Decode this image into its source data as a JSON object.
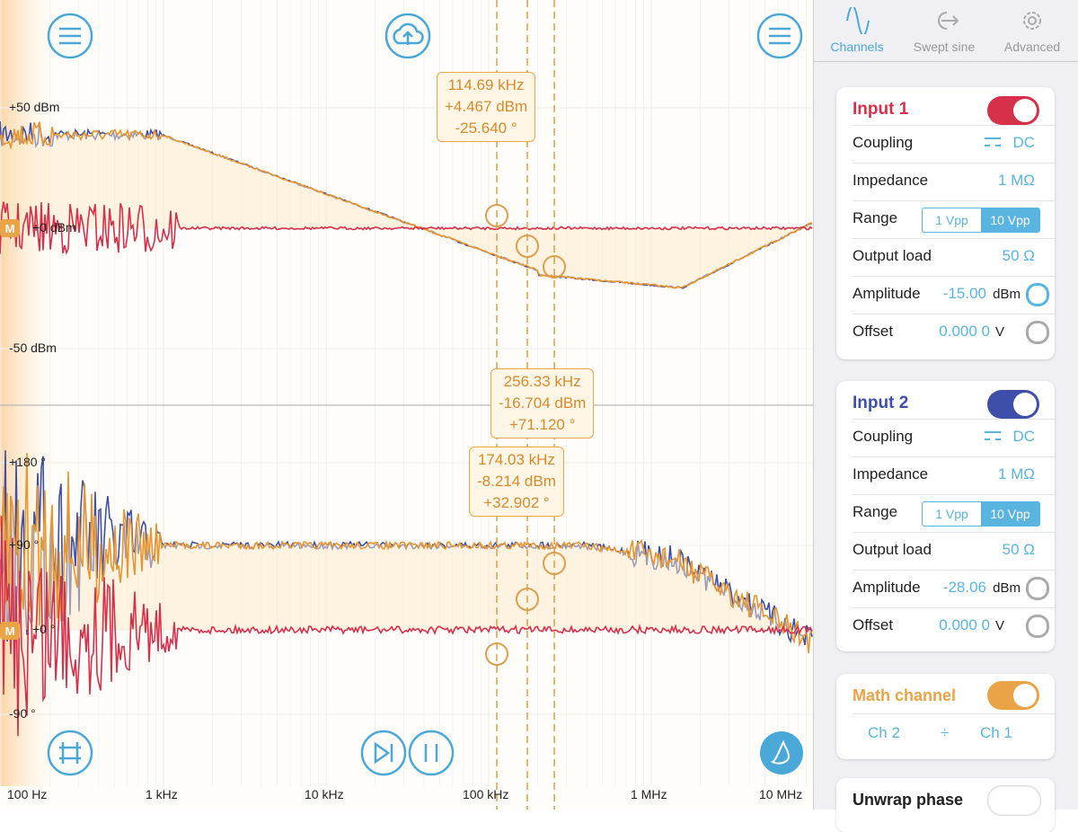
{
  "plot": {
    "magnitude_axis": [
      "+50 dBm",
      "+0 dBm",
      "-50 dBm"
    ],
    "phase_axis": [
      "+180 °",
      "+90 °",
      "+0 °",
      "-90 °"
    ],
    "frequency_axis": [
      "100 Hz",
      "1 kHz",
      "10 kHz",
      "100 kHz",
      "1 MHz",
      "10 MHz"
    ],
    "cursors": [
      {
        "frequency": "114.69 kHz",
        "magnitude": "+4.467 dBm",
        "phase": "-25.640 °"
      },
      {
        "frequency": "256.33 kHz",
        "magnitude": "-16.704 dBm",
        "phase": "+71.120 °"
      },
      {
        "frequency": "174.03 kHz",
        "magnitude": "-8.214 dBm",
        "phase": "+32.902 °"
      }
    ],
    "marker": "M"
  },
  "tabs": [
    "Channels",
    "Swept sine",
    "Advanced"
  ],
  "input1": {
    "title": "Input 1",
    "coupling": [
      "Coupling",
      "DC"
    ],
    "impedance": [
      "Impedance",
      "1 MΩ"
    ],
    "range": [
      "Range",
      "1 Vpp",
      "10 Vpp"
    ],
    "output_load": [
      "Output load",
      "50 Ω"
    ],
    "amplitude": [
      "Amplitude",
      "-15.00",
      "dBm"
    ],
    "offset": [
      "Offset",
      "0.000 0",
      "V"
    ]
  },
  "input2": {
    "title": "Input 2",
    "coupling": [
      "Coupling",
      "DC"
    ],
    "impedance": [
      "Impedance",
      "1 MΩ"
    ],
    "range": [
      "Range",
      "1 Vpp",
      "10 Vpp"
    ],
    "output_load": [
      "Output load",
      "50 Ω"
    ],
    "amplitude": [
      "Amplitude",
      "-28.06",
      "dBm"
    ],
    "offset": [
      "Offset",
      "0.000 0",
      "V"
    ]
  },
  "math": {
    "title": "Math channel",
    "operands": [
      "Ch 2",
      "÷",
      "Ch 1"
    ]
  },
  "unwrap": {
    "title": "Unwrap phase"
  }
}
